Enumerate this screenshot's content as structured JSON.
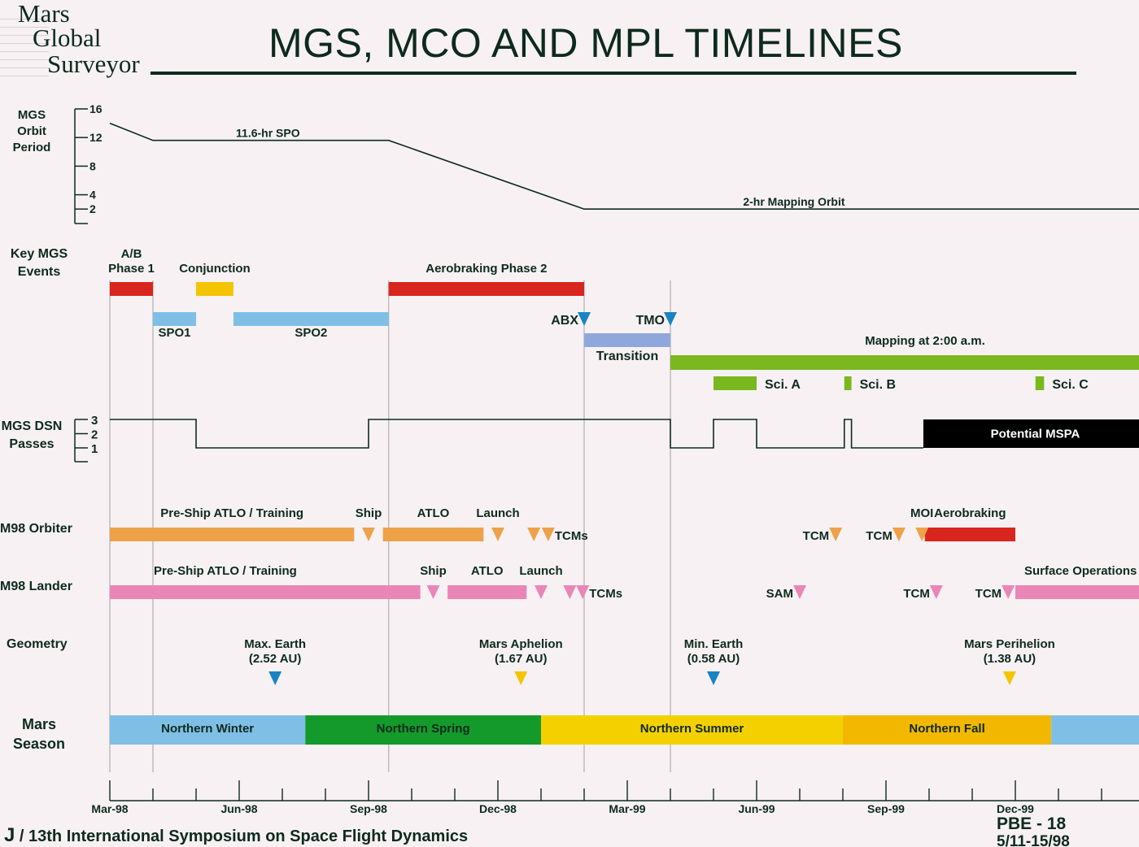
{
  "header": {
    "logo_lines": [
      "Mars",
      "Global",
      "Surveyor"
    ],
    "title": "MGS, MCO AND MPL TIMELINES"
  },
  "row_labels": {
    "orbit_period": "MGS\nOrbit\nPeriod",
    "key_events": "Key MGS\nEvents",
    "dsn": "MGS DSN\nPasses",
    "orbiter": "M98 Orbiter",
    "lander": "M98 Lander",
    "geometry": "Geometry",
    "season": "Mars\nSeason"
  },
  "chart_data": {
    "type": "timeline",
    "title": "MGS, MCO AND MPL TIMELINES",
    "x_range": [
      "1998-03-01",
      "2000-03-01"
    ],
    "x_tick_labels": [
      "Mar-98",
      "Jun-98",
      "Sep-98",
      "Dec-98",
      "Mar-99",
      "Jun-99",
      "Sep-99",
      "Dec-99"
    ],
    "x_tick_dates": [
      "1998-03-01",
      "1998-06-01",
      "1998-09-01",
      "1998-12-01",
      "1999-03-01",
      "1999-06-01",
      "1999-09-01",
      "1999-12-01"
    ],
    "phase_gridlines": [
      "1998-03-01",
      "1998-04-01",
      "1998-09-15",
      "1999-02-01",
      "1999-04-01"
    ],
    "orbit_period": {
      "unit": "hr",
      "ticks": [
        16,
        12,
        8,
        4,
        2
      ],
      "points": [
        [
          "1998-03-01",
          14
        ],
        [
          "1998-04-01",
          11.6
        ],
        [
          "1998-09-15",
          11.6
        ],
        [
          "1999-02-01",
          2
        ],
        [
          "2000-03-01",
          2
        ]
      ],
      "annotations": [
        {
          "text": "11.6-hr SPO",
          "date": "1998-06-21",
          "value": 11.6
        },
        {
          "text": "2-hr Mapping Orbit",
          "date": "1999-06-27",
          "value": 2
        }
      ]
    },
    "key_events": {
      "bars": [
        {
          "label": "A/B\nPhase 1",
          "start": "1998-03-01",
          "end": "1998-04-01",
          "color": "#d8251e",
          "row": "ke1",
          "label_pos": "above"
        },
        {
          "label": "Conjunction",
          "start": "1998-05-01",
          "end": "1998-05-27",
          "color": "#f5c400",
          "row": "ke1",
          "label_pos": "above"
        },
        {
          "label": "Aerobraking Phase 2",
          "start": "1998-09-15",
          "end": "1999-02-01",
          "color": "#d8251e",
          "row": "ke1",
          "label_pos": "above"
        },
        {
          "label": "SPO1",
          "start": "1998-04-01",
          "end": "1998-05-01",
          "color": "#7fbfe6",
          "row": "ke2",
          "label_pos": "below"
        },
        {
          "label": "SPO2",
          "start": "1998-05-27",
          "end": "1998-09-15",
          "color": "#7fbfe6",
          "row": "ke2",
          "label_pos": "below"
        },
        {
          "label": "Transition",
          "start": "1999-02-01",
          "end": "1999-04-01",
          "color": "#8fa8dc",
          "row": "ke3",
          "label_pos": "below"
        },
        {
          "label": "Mapping at 2:00 a.m.",
          "start": "1999-04-01",
          "end": "2000-03-01",
          "color": "#7ab81f",
          "row": "ke4",
          "label_pos": "above-mid"
        },
        {
          "label": "Sci. A",
          "start": "1999-05-01",
          "end": "1999-06-01",
          "color": "#7ab81f",
          "row": "ke5",
          "label_pos": "right"
        },
        {
          "label": "Sci. B",
          "start": "1999-08-02",
          "end": "1999-08-07",
          "color": "#7ab81f",
          "row": "ke5",
          "label_pos": "right"
        },
        {
          "label": "Sci. C",
          "start": "1999-12-15",
          "end": "1999-12-21",
          "color": "#7ab81f",
          "row": "ke5",
          "label_pos": "right"
        }
      ],
      "markers": [
        {
          "label": "ABX",
          "date": "1999-02-01",
          "color": "#1a84c2",
          "row": "ke2",
          "label_pos": "left"
        },
        {
          "label": "TMO",
          "date": "1999-04-01",
          "color": "#1a84c2",
          "row": "ke2",
          "label_pos": "left"
        }
      ]
    },
    "dsn_passes": {
      "ticks": [
        3,
        2,
        1
      ],
      "steps": [
        [
          "1998-03-01",
          3
        ],
        [
          "1998-05-01",
          1
        ],
        [
          "1998-09-01",
          3
        ],
        [
          "1999-04-01",
          1
        ],
        [
          "1999-05-01",
          3
        ],
        [
          "1999-06-01",
          1
        ],
        [
          "1999-08-02",
          3
        ],
        [
          "1999-08-07",
          1
        ],
        [
          "1999-09-27",
          1
        ]
      ],
      "mspa": {
        "label": "Potential MSPA",
        "start": "1999-09-27",
        "end": "2000-03-01",
        "color": "#000000"
      }
    },
    "m98_orbiter": {
      "bars": [
        {
          "label": "Pre-Ship ATLO / Training",
          "start": "1998-03-01",
          "end": "1998-08-21",
          "color": "#eda24a",
          "label_pos": "above"
        },
        {
          "label": "ATLO",
          "start": "1998-09-11",
          "end": "1998-11-21",
          "color": "#eda24a",
          "label_pos": "above"
        },
        {
          "label": "Aerobraking",
          "start": "1999-09-28",
          "end": "1999-12-01",
          "color": "#d8251e",
          "label_pos": "above"
        }
      ],
      "markers": [
        {
          "label": "Ship",
          "date": "1998-09-01",
          "color": "#eda24a",
          "label_pos": "above"
        },
        {
          "label": "Launch",
          "date": "1998-12-01",
          "color": "#eda24a",
          "label_pos": "above"
        },
        {
          "label": "",
          "date": "1998-12-26",
          "color": "#eda24a",
          "label_pos": "none"
        },
        {
          "label": "TCMs",
          "date": "1999-01-06",
          "color": "#eda24a",
          "label_pos": "right"
        },
        {
          "label": "TCM",
          "date": "1999-07-26",
          "color": "#eda24a",
          "label_pos": "left"
        },
        {
          "label": "TCM",
          "date": "1999-09-10",
          "color": "#eda24a",
          "label_pos": "left"
        },
        {
          "label": "MOI",
          "date": "1999-09-26",
          "color": "#eda24a",
          "label_pos": "above"
        }
      ]
    },
    "m98_lander": {
      "bars": [
        {
          "label": "Pre-Ship ATLO / Training",
          "start": "1998-03-01",
          "end": "1998-10-07",
          "color": "#e986b7",
          "label_pos": "above-left"
        },
        {
          "label": "ATLO",
          "start": "1998-10-26",
          "end": "1998-12-21",
          "color": "#e986b7",
          "label_pos": "above"
        },
        {
          "label": "Surface Operations",
          "start": "1999-12-01",
          "end": "2000-03-01",
          "color": "#e986b7",
          "label_pos": "above-left"
        }
      ],
      "markers": [
        {
          "label": "Ship",
          "date": "1998-10-16",
          "color": "#e986b7",
          "label_pos": "above"
        },
        {
          "label": "Launch",
          "date": "1999-01-01",
          "color": "#e986b7",
          "label_pos": "above"
        },
        {
          "label": "",
          "date": "1999-01-21",
          "color": "#e986b7",
          "label_pos": "none"
        },
        {
          "label": "TCMs",
          "date": "1999-01-30",
          "color": "#e986b7",
          "label_pos": "right"
        },
        {
          "label": "SAM",
          "date": "1999-07-01",
          "color": "#e986b7",
          "label_pos": "left"
        },
        {
          "label": "TCM",
          "date": "1999-10-06",
          "color": "#e986b7",
          "label_pos": "left"
        },
        {
          "label": "TCM",
          "date": "1999-11-26",
          "color": "#e986b7",
          "label_pos": "left"
        }
      ]
    },
    "geometry": [
      {
        "label": "Max. Earth\n(2.52 AU)",
        "date": "1998-06-26",
        "color": "#1a84c2"
      },
      {
        "label": "Mars Aphelion\n(1.67 AU)",
        "date": "1998-12-17",
        "color": "#f5c400"
      },
      {
        "label": "Min. Earth\n(0.58 AU)",
        "date": "1999-05-01",
        "color": "#1a84c2"
      },
      {
        "label": "Mars Perihelion\n(1.38 AU)",
        "date": "1999-11-27",
        "color": "#f5c400"
      }
    ],
    "mars_season": [
      {
        "label": "Northern Winter",
        "start": "1998-03-01",
        "end": "1998-07-17",
        "color": "#7fbfe6"
      },
      {
        "label": "Northern Spring",
        "start": "1998-07-17",
        "end": "1999-01-01",
        "color": "#139a2b"
      },
      {
        "label": "Northern Summer",
        "start": "1999-01-01",
        "end": "1999-08-01",
        "color": "#f5d000"
      },
      {
        "label": "Northern Fall",
        "start": "1999-08-01",
        "end": "1999-12-26",
        "color": "#f2b800"
      },
      {
        "label": "",
        "start": "1999-12-26",
        "end": "2000-03-01",
        "color": "#7fbfe6"
      }
    ]
  },
  "footer": {
    "initial": "J",
    "text": " / 13th International Symposium on Space Flight Dynamics",
    "page": "PBE  -  18",
    "dates": "5/11-15/98"
  }
}
